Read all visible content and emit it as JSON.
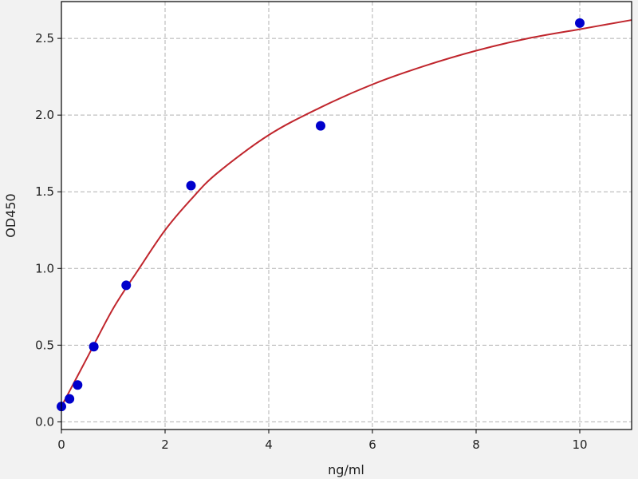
{
  "chart_data": {
    "type": "scatter",
    "title": "",
    "xlabel": "ng/ml",
    "ylabel": "OD450",
    "xlim": [
      0,
      11
    ],
    "ylim": [
      -0.05,
      2.74
    ],
    "x_ticks": [
      "0",
      "2",
      "4",
      "6",
      "8",
      "10"
    ],
    "y_ticks": [
      "0.0",
      "0.5",
      "1.0",
      "1.5",
      "2.0",
      "2.5"
    ],
    "grid": true,
    "points": {
      "x": [
        0,
        0.156,
        0.3125,
        0.625,
        1.25,
        2.5,
        5,
        10
      ],
      "y": [
        0.1,
        0.15,
        0.24,
        0.49,
        0.89,
        1.54,
        1.93,
        2.6
      ],
      "color": "#0000cc"
    },
    "fit_curve": {
      "x": [
        0,
        0.5,
        1,
        1.5,
        2,
        2.5,
        3,
        4,
        5,
        6,
        7,
        8,
        9,
        10,
        11
      ],
      "y": [
        0.1,
        0.42,
        0.74,
        1.0,
        1.25,
        1.45,
        1.62,
        1.87,
        2.05,
        2.2,
        2.32,
        2.42,
        2.5,
        2.56,
        2.62
      ],
      "color": "#c0262d"
    }
  }
}
